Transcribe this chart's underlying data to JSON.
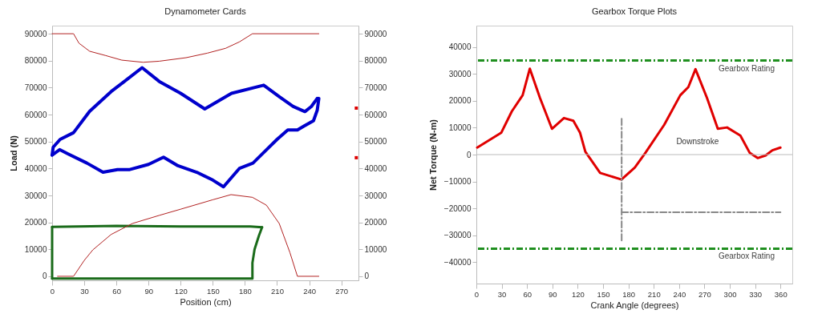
{
  "chart_data": [
    {
      "type": "line",
      "title": "Dynamometer Cards",
      "xlabel": "Position (cm)",
      "ylabel": "Load (N)",
      "xlim": [
        0,
        286
      ],
      "xticks": [
        0,
        30,
        60,
        90,
        120,
        150,
        180,
        210,
        240,
        270
      ],
      "ylim": [
        -1500,
        93000
      ],
      "yticks": [
        0,
        10000,
        20000,
        30000,
        40000,
        50000,
        60000,
        70000,
        80000,
        90000
      ],
      "y2lim": [
        -1500,
        93000
      ],
      "y2ticks": [
        0,
        10000,
        20000,
        30000,
        40000,
        50000,
        60000,
        70000,
        80000,
        90000
      ],
      "grid": false,
      "series": [
        {
          "color": "#0000cc",
          "x": [
            0,
            1,
            7.5,
            20,
            35,
            55,
            67.5,
            84,
            100,
            120,
            142.5,
            167.5,
            197.5,
            212.5,
            225,
            236,
            242,
            247.5
          ],
          "values": [
            45000,
            47900,
            50800,
            53300,
            61200,
            68500,
            72300,
            77400,
            72300,
            67900,
            62100,
            67900,
            70900,
            66500,
            63000,
            61100,
            63000,
            66000
          ]
        },
        {
          "color": "#0000cc",
          "x": [
            0,
            7,
            15,
            32.5,
            47.5,
            61,
            72.5,
            90,
            104,
            117.5,
            135,
            150,
            160,
            175,
            187.5,
            200,
            210,
            220,
            229,
            235,
            244,
            247.5,
            249
          ],
          "values": [
            45000,
            47000,
            45400,
            42000,
            38600,
            39600,
            39600,
            41500,
            44200,
            41000,
            38600,
            35700,
            33200,
            40100,
            42000,
            46900,
            50800,
            54300,
            54300,
            55700,
            57700,
            61600,
            66000
          ]
        },
        {
          "color": "#1a6b1a",
          "x": [
            0,
            60,
            120,
            185,
            196
          ],
          "values": [
            18300,
            18700,
            18500,
            18500,
            18200
          ]
        },
        {
          "color": "#1a6b1a",
          "x": [
            196,
            193,
            189,
            187,
            187,
            100,
            0
          ],
          "values": [
            18200,
            15000,
            10000,
            5000,
            -800,
            -800,
            -800
          ]
        },
        {
          "color": "#1a6b1a",
          "x": [
            0,
            0
          ],
          "values": [
            -800,
            18300
          ]
        },
        {
          "color": "#b22222",
          "x": [
            0,
            20,
            25,
            35,
            50,
            65,
            85,
            100,
            125,
            145,
            162,
            175,
            187,
            249
          ],
          "values": [
            90000,
            90000,
            86500,
            83500,
            81900,
            80200,
            79400,
            79800,
            81100,
            82800,
            84600,
            87000,
            90000,
            90000
          ]
        },
        {
          "color": "#b22222",
          "x": [
            5,
            20,
            30,
            38,
            55,
            75,
            100,
            120,
            150,
            167,
            187,
            200,
            212,
            222,
            229,
            249
          ],
          "values": [
            0,
            0,
            5900,
            9800,
            15500,
            19600,
            22600,
            24900,
            28400,
            30300,
            29300,
            26400,
            19600,
            8800,
            0,
            0
          ]
        },
        {
          "type": "scatter",
          "axis": "y2",
          "marker": "square",
          "color": "#dd0000",
          "x": [
            284,
            284
          ],
          "values": [
            62400,
            44000
          ]
        }
      ]
    },
    {
      "type": "line",
      "title": "Gearbox Torque Plots",
      "xlabel": "Crank Angle (degrees)",
      "ylabel": "Net Torque (N-m)",
      "xlim": [
        0,
        374
      ],
      "xticks": [
        0,
        30,
        60,
        90,
        120,
        150,
        180,
        210,
        240,
        270,
        300,
        330,
        360
      ],
      "ylim": [
        -48000,
        48000
      ],
      "yticks": [
        -40000,
        -30000,
        -20000,
        -10000,
        0,
        10000,
        20000,
        30000,
        40000
      ],
      "grid": false,
      "ref_lines": [
        {
          "axis": "y",
          "value": 35000,
          "label": "Gearbox Rating",
          "color": "#1f8f1f",
          "line_style": "dashed"
        },
        {
          "axis": "y",
          "value": -35000,
          "label": "Gearbox Rating",
          "color": "#1f8f1f",
          "line_style": "dashed"
        },
        {
          "axis": "y",
          "value": 0,
          "color": "#bbbbbb"
        }
      ],
      "annotations": [
        "Downstroke"
      ],
      "series": [
        {
          "color": "#e00000",
          "x": [
            1,
            29.4,
            42,
            54.8,
            63.3,
            75.3,
            89.5,
            103.7,
            114.8,
            122.8,
            129,
            146.5,
            171.8,
            187.6,
            200.2,
            222.4,
            241.4,
            250.9,
            259.4,
            273,
            285.8,
            296.8,
            312.5,
            323.5,
            333,
            342.5,
            350.4,
            359.9
          ],
          "values": [
            2600,
            8100,
            16100,
            22100,
            32000,
            21100,
            9600,
            13600,
            12600,
            8100,
            1100,
            -6800,
            -9300,
            -4800,
            700,
            11100,
            22100,
            25100,
            31800,
            21100,
            9600,
            10100,
            7100,
            700,
            -1300,
            -300,
            1600,
            2600
          ]
        },
        {
          "color": "#888888",
          "line_style": "dashed",
          "x": [
            172,
            172
          ],
          "values": [
            -32000,
            14000
          ]
        },
        {
          "color": "#888888",
          "line_style": "dashed",
          "x": [
            172,
            360
          ],
          "values": [
            -21500,
            -21500
          ]
        }
      ]
    }
  ]
}
